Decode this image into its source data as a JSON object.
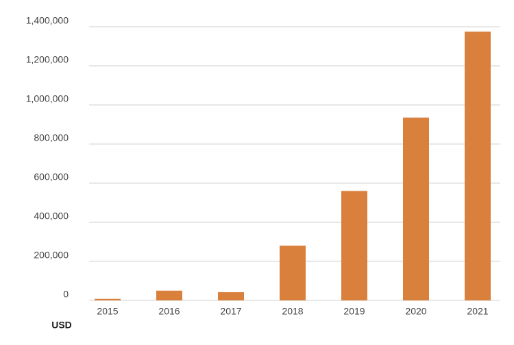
{
  "chart_data": {
    "type": "bar",
    "y_label": "USD",
    "categories": [
      "2015",
      "2016",
      "2017",
      "2018",
      "2019",
      "2020",
      "2021"
    ],
    "values": [
      8000,
      50000,
      42000,
      280000,
      560000,
      935000,
      1375000
    ],
    "color": "#d9803c",
    "ylim": [
      0,
      1400000
    ],
    "yticks": [
      0,
      {
        "value": 200000,
        "label": "200,000"
      },
      {
        "value": 400000,
        "label": "400,000"
      },
      {
        "value": 600000,
        "label": "600,000"
      },
      {
        "value": 800000,
        "label": "800,000"
      },
      {
        "value": 1000000,
        "label": "1,000,000"
      },
      {
        "value": 1200000,
        "label": "1,200,000"
      },
      {
        "value": 1400000,
        "label": "1,400,000"
      }
    ],
    "grid": true
  }
}
